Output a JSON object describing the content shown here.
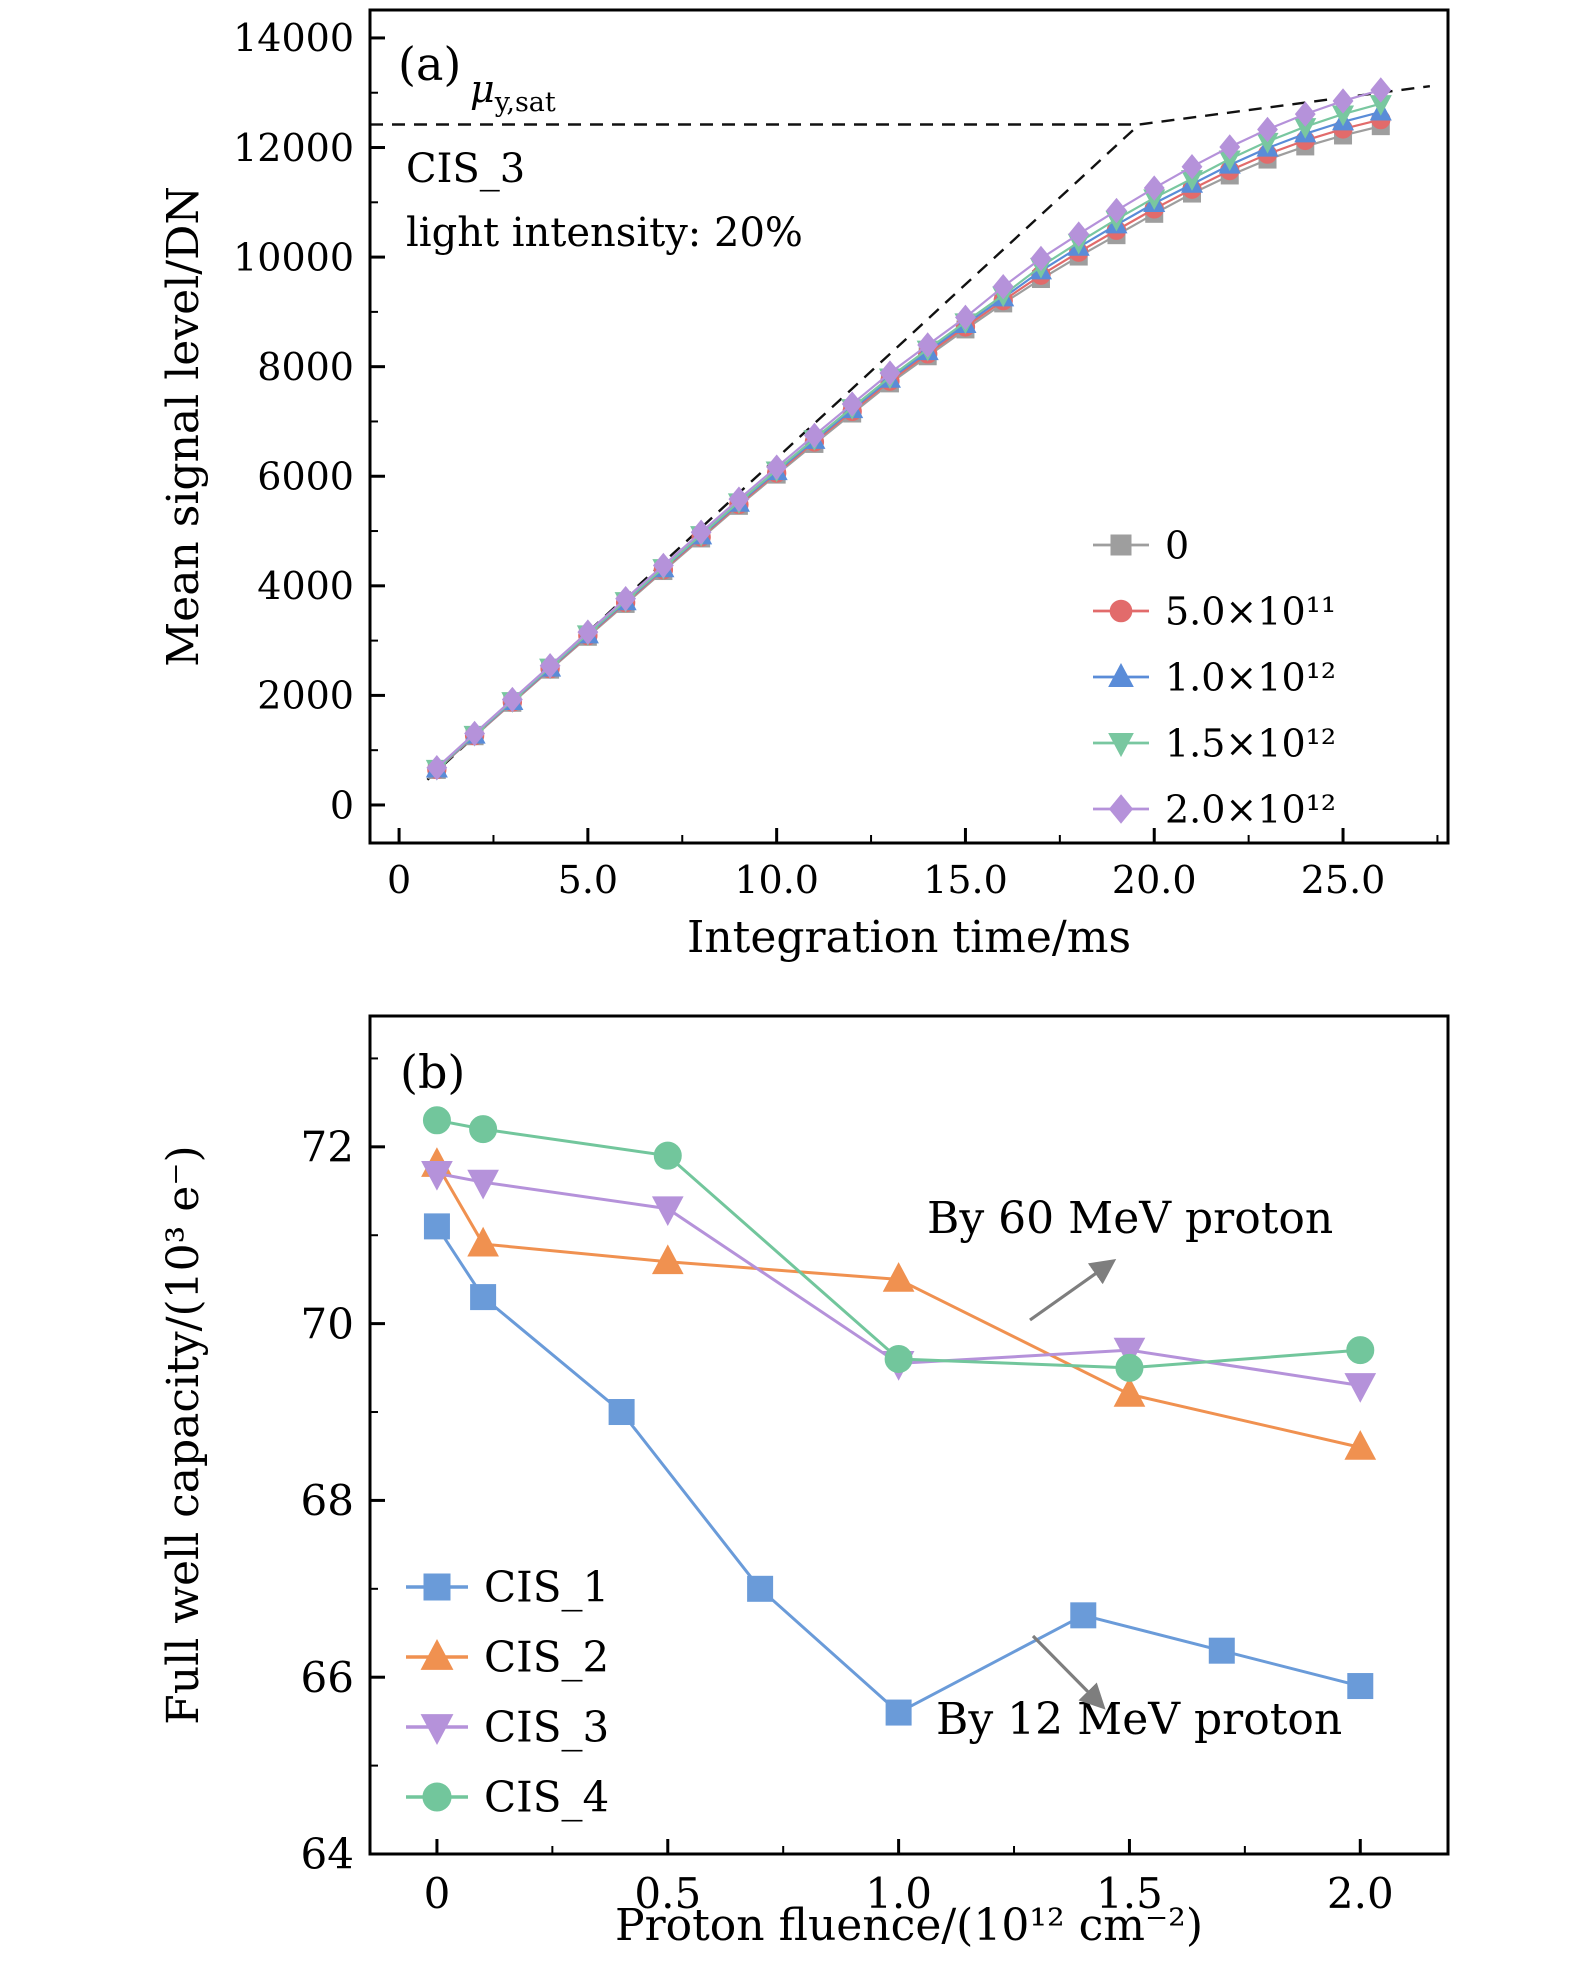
{
  "page": {
    "background": "#ffffff"
  },
  "chart_data": [
    {
      "id": "panel-a",
      "type": "line",
      "panel_label": "(a)",
      "xlabel": "Integration time/ms",
      "ylabel": "Mean signal level/DN",
      "xlim": [
        -0.77,
        27.78
      ],
      "ylim": [
        -694,
        14510
      ],
      "grid": false,
      "legend_position": "right-middle",
      "xticks": {
        "values": [
          0,
          5,
          10,
          15,
          20,
          25
        ],
        "labels": [
          "0",
          "5.0",
          "10.0",
          "15.0",
          "20.0",
          "25.0"
        ],
        "minor_step": 2.5
      },
      "yticks": {
        "values": [
          0,
          2000,
          4000,
          6000,
          8000,
          10000,
          12000,
          14000
        ],
        "labels": [
          "0",
          "2000",
          "4000",
          "6000",
          "8000",
          "10000",
          "12000",
          "14000"
        ],
        "minor_step": 1000
      },
      "saturation_label": {
        "base": "μ",
        "sub": "y,sat"
      },
      "inner_text": [
        "CIS_3",
        "light intensity: 20%"
      ],
      "dashed_lines": [
        {
          "name": "saturation-level-dashed-line",
          "points": [
            [
              -0.77,
              12420
            ],
            [
              19.6,
              12420
            ]
          ]
        },
        {
          "name": "linear-fit-dashed-line",
          "points": [
            [
              0.75,
              460
            ],
            [
              19.6,
              12420
            ],
            [
              27.3,
              13120
            ]
          ]
        }
      ],
      "x": [
        1,
        2,
        3,
        4,
        5,
        6,
        7,
        8,
        9,
        10,
        11,
        12,
        13,
        14,
        15,
        16,
        17,
        18,
        19,
        20,
        21,
        22,
        23,
        24,
        25,
        26
      ],
      "series": [
        {
          "name": "0",
          "color": "#9e9e9e",
          "marker": "square",
          "values": [
            640,
            1255,
            1865,
            2470,
            3070,
            3670,
            4270,
            4865,
            5460,
            6030,
            6590,
            7145,
            7695,
            8190,
            8680,
            9155,
            9600,
            10010,
            10400,
            10790,
            11160,
            11490,
            11780,
            12020,
            12220,
            12390
          ]
        },
        {
          "name": "5.0×10¹¹",
          "color": "#e26b6b",
          "marker": "circle",
          "values": [
            650,
            1266,
            1878,
            2486,
            3090,
            3692,
            4292,
            4890,
            5485,
            6058,
            6626,
            7184,
            7736,
            8234,
            8726,
            9206,
            9670,
            10090,
            10490,
            10880,
            11240,
            11580,
            11880,
            12130,
            12340,
            12510
          ]
        },
        {
          "name": "1.0×10¹²",
          "color": "#5a8cd8",
          "marker": "triangle-up",
          "values": [
            658,
            1276,
            1890,
            2500,
            3105,
            3710,
            4312,
            4912,
            5508,
            6086,
            6656,
            7218,
            7772,
            8276,
            8770,
            9256,
            9750,
            10180,
            10590,
            10980,
            11330,
            11680,
            11990,
            12250,
            12470,
            12650
          ]
        },
        {
          "name": "1.5×10¹²",
          "color": "#79c7a0",
          "marker": "triangle-down",
          "values": [
            666,
            1287,
            1903,
            2515,
            3122,
            3728,
            4330,
            4932,
            5532,
            6112,
            6686,
            7252,
            7810,
            8318,
            8816,
            9306,
            9830,
            10270,
            10690,
            11080,
            11430,
            11790,
            12110,
            12380,
            12610,
            12800
          ]
        },
        {
          "name": "2.0×10¹²",
          "color": "#b592da",
          "marker": "diamond",
          "values": [
            680,
            1305,
            1925,
            2542,
            3156,
            3766,
            4372,
            4978,
            5582,
            6166,
            6746,
            7318,
            7884,
            8396,
            8900,
            9460,
            9975,
            10420,
            10850,
            11260,
            11650,
            12010,
            12330,
            12610,
            12850,
            13050
          ]
        }
      ]
    },
    {
      "id": "panel-b",
      "type": "line",
      "panel_label": "(b)",
      "xlabel": "Proton fluence/(10¹² cm⁻²)",
      "ylabel": "Full well capacity/(10³ e⁻)",
      "xlim": [
        -0.145,
        2.19
      ],
      "ylim": [
        64,
        73.48
      ],
      "grid": false,
      "legend_position": "left-bottom",
      "xticks": {
        "values": [
          0,
          0.5,
          1.0,
          1.5,
          2.0
        ],
        "labels": [
          "0",
          "0.5",
          "1.0",
          "1.5",
          "2.0"
        ],
        "minor_step": 0.25
      },
      "yticks": {
        "values": [
          64,
          66,
          68,
          70,
          72
        ],
        "labels": [
          "64",
          "66",
          "68",
          "70",
          "72"
        ],
        "minor_step": 1
      },
      "annotations": [
        {
          "text": "By 60 MeV proton"
        },
        {
          "text": "By 12 MeV proton"
        }
      ],
      "series": [
        {
          "name": "CIS_1",
          "color": "#6a9bd9",
          "marker": "square",
          "x": [
            0,
            0.1,
            0.4,
            0.7,
            1.0,
            1.4,
            1.7,
            2.0
          ],
          "values": [
            71.1,
            70.3,
            69.0,
            67.0,
            65.6,
            66.7,
            66.3,
            65.9
          ]
        },
        {
          "name": "CIS_2",
          "color": "#f09150",
          "marker": "triangle-up",
          "x": [
            0,
            0.1,
            0.5,
            1.0,
            1.5,
            2.0
          ],
          "values": [
            71.8,
            70.9,
            70.7,
            70.5,
            69.2,
            68.6
          ]
        },
        {
          "name": "CIS_3",
          "color": "#b592da",
          "marker": "triangle-down",
          "x": [
            0,
            0.1,
            0.5,
            1.0,
            1.5,
            2.0
          ],
          "values": [
            71.7,
            71.6,
            71.3,
            69.55,
            69.7,
            69.3
          ]
        },
        {
          "name": "CIS_4",
          "color": "#72c69c",
          "marker": "circle",
          "x": [
            0,
            0.1,
            0.5,
            1.0,
            1.5,
            2.0
          ],
          "values": [
            72.3,
            72.2,
            71.9,
            69.6,
            69.5,
            69.7
          ]
        }
      ]
    }
  ]
}
